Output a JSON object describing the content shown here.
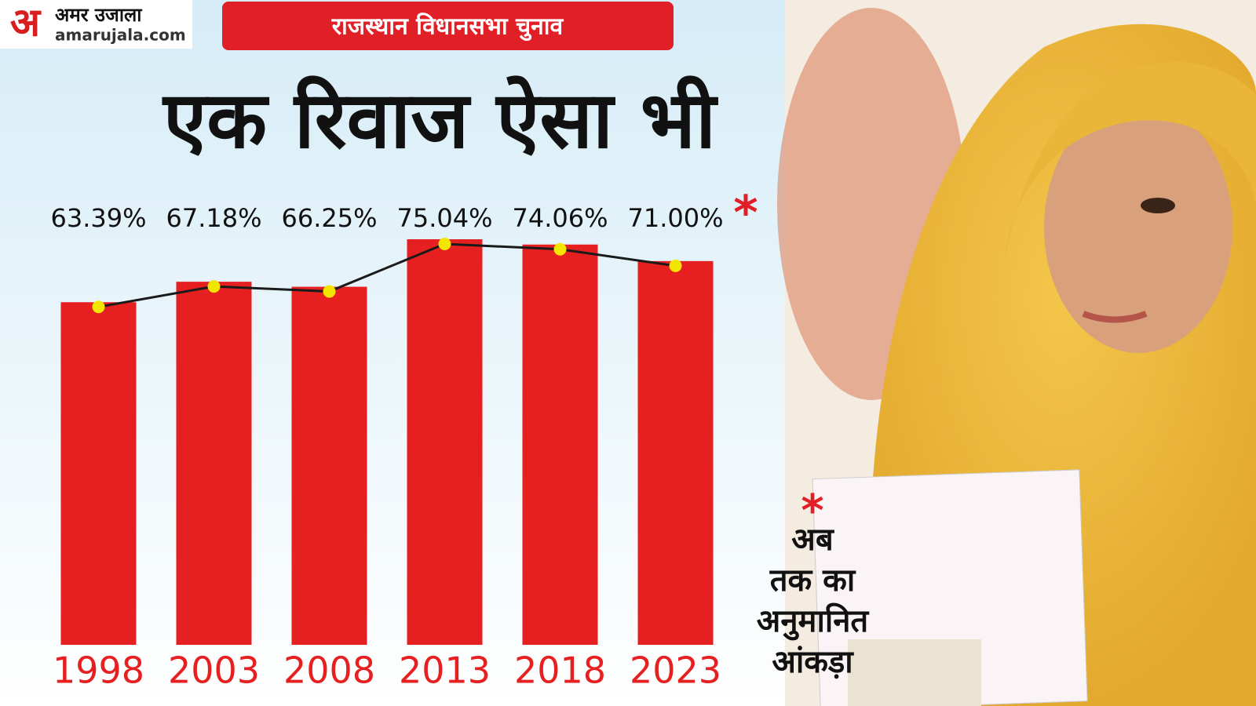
{
  "header": {
    "logo_letter": "अ",
    "logo_name": "अमर उजाला",
    "logo_site": "amarujala.com",
    "banner": "राजस्थान विधानसभा चुनाव"
  },
  "chart_data": {
    "type": "bar",
    "title": "एक रिवाज ऐसा भी",
    "categories": [
      "1998",
      "2003",
      "2008",
      "2013",
      "2018",
      "2023"
    ],
    "values": [
      63.39,
      67.18,
      66.25,
      75.04,
      74.06,
      71.0
    ],
    "value_labels": [
      "63.39%",
      "67.18%",
      "66.25%",
      "75.04%",
      "74.06%",
      "71.00%"
    ],
    "color": "#e62020",
    "line_color": "#1a1a1a",
    "marker_color": "#f2e600",
    "annotation_mark": "*"
  },
  "note": {
    "mark": "*",
    "lines": [
      "अब",
      "तक का",
      "अनुमानित",
      "आंकड़ा"
    ]
  }
}
